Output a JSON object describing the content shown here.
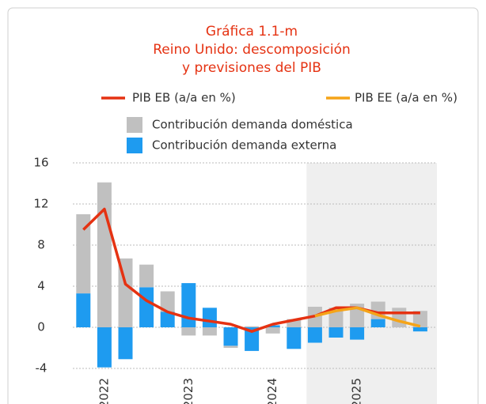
{
  "chart_data": {
    "type": "bar",
    "title_lines": [
      "Gráfica 1.1-m",
      "Reino Unido: descomposición",
      "y previsiones del PIB"
    ],
    "categories": [
      null,
      "2022",
      null,
      null,
      null,
      "2023",
      null,
      null,
      null,
      "2024",
      null,
      null,
      null,
      "2025",
      null,
      null,
      null
    ],
    "series": [
      {
        "name": "Contribución demanda doméstica",
        "color": "#c0c0c0",
        "kind": "bar",
        "values": [
          7.7,
          14.1,
          6.7,
          2.2,
          2.0,
          -0.8,
          -0.8,
          -0.2,
          0.1,
          -0.6,
          0.8,
          2.0,
          1.9,
          2.3,
          1.7,
          1.9,
          1.6
        ]
      },
      {
        "name": "Contribución demanda externa",
        "color": "#1e9bf0",
        "kind": "bar",
        "values": [
          3.3,
          -3.9,
          -3.1,
          3.9,
          1.5,
          4.3,
          1.9,
          -1.8,
          -2.3,
          0.2,
          -2.1,
          -1.5,
          -1.0,
          -1.2,
          0.8,
          0.0,
          -0.4
        ]
      },
      {
        "name": "PIB EB (a/a en %)",
        "color": "#e53212",
        "kind": "line",
        "values": [
          9.5,
          11.5,
          4.2,
          2.6,
          1.5,
          0.9,
          0.6,
          0.3,
          -0.4,
          0.3,
          0.7,
          1.1,
          1.9,
          1.9,
          1.4,
          1.4,
          1.4
        ]
      },
      {
        "name": "PIB EE (a/a en %)",
        "color": "#f5a418",
        "kind": "line",
        "values": [
          null,
          null,
          null,
          null,
          null,
          null,
          null,
          null,
          null,
          null,
          null,
          1.1,
          1.6,
          1.9,
          1.2,
          0.6,
          0.1
        ]
      }
    ],
    "ylim": [
      -4,
      16
    ],
    "yticks": [
      -4,
      0,
      4,
      8,
      12,
      16
    ],
    "grid": true
  }
}
